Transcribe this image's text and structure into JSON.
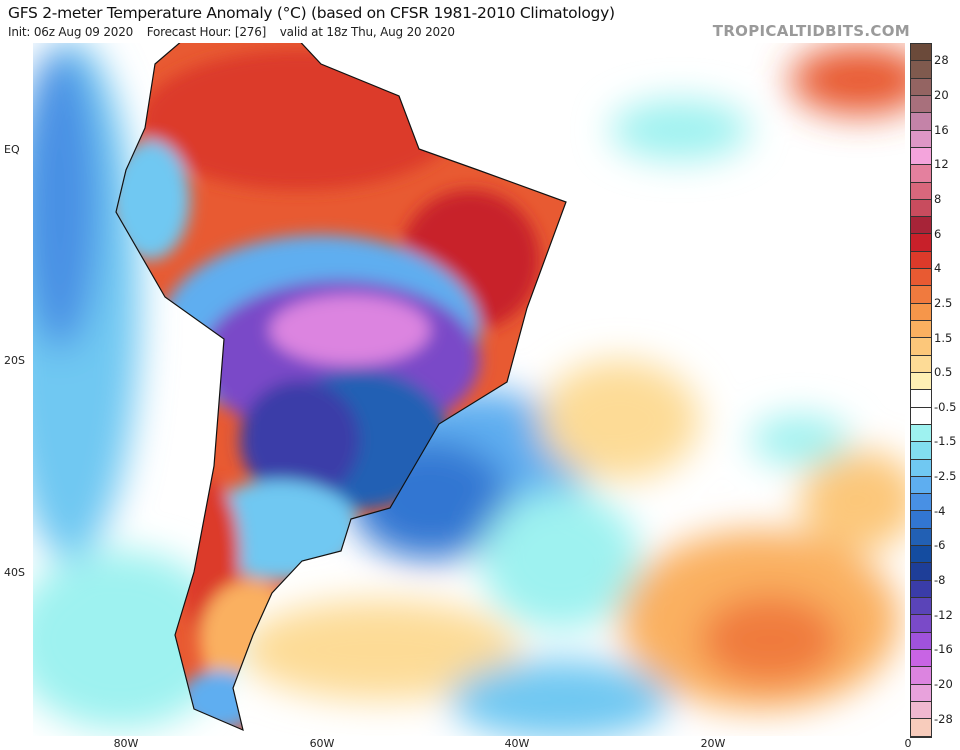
{
  "header": {
    "title": "GFS 2-meter Temperature Anomaly (°C) (based on CFSR 1981-2010 Climatology)",
    "init": "Init: 06z Aug 09 2020",
    "forecast_hour": "Forecast Hour: [276]",
    "valid": "valid at 18z Thu, Aug 20 2020",
    "brand": "TROPICALTIDBITS.COM"
  },
  "axes": {
    "lat_labels": [
      "EQ",
      "20S",
      "40S"
    ],
    "lon_labels": [
      "80W",
      "60W",
      "40W",
      "20W",
      "0"
    ]
  },
  "colorbar": {
    "labels": [
      "28",
      "20",
      "16",
      "12",
      "8",
      "6",
      "4",
      "2.5",
      "1.5",
      "0.5",
      "-0.5",
      "-1.5",
      "-2.5",
      "-4",
      "-6",
      "-8",
      "-12",
      "-16",
      "-20",
      "-28"
    ],
    "colors": [
      "#6b4a3a",
      "#7f5a4e",
      "#946462",
      "#a8707c",
      "#c483a8",
      "#de97c6",
      "#f4a4dc",
      "#e4809e",
      "#d9677c",
      "#c84c5e",
      "#a72438",
      "#c8202a",
      "#dc3a2a",
      "#e85a32",
      "#f07a3e",
      "#f6964a",
      "#fab060",
      "#fcc77a",
      "#fddb96",
      "#fff0b4",
      "#ffffff",
      "#ffffff",
      "#9ef2f0",
      "#82def0",
      "#70c8f2",
      "#5eaef0",
      "#4890e4",
      "#3276d2",
      "#2260b4",
      "#144ca0",
      "#1e3e98",
      "#3a3ca8",
      "#5a44b8",
      "#7a4ac8",
      "#a052dc",
      "#c864e4",
      "#dc84e0",
      "#e8a2dc",
      "#f0b8d0",
      "#f8ccbc"
    ]
  }
}
